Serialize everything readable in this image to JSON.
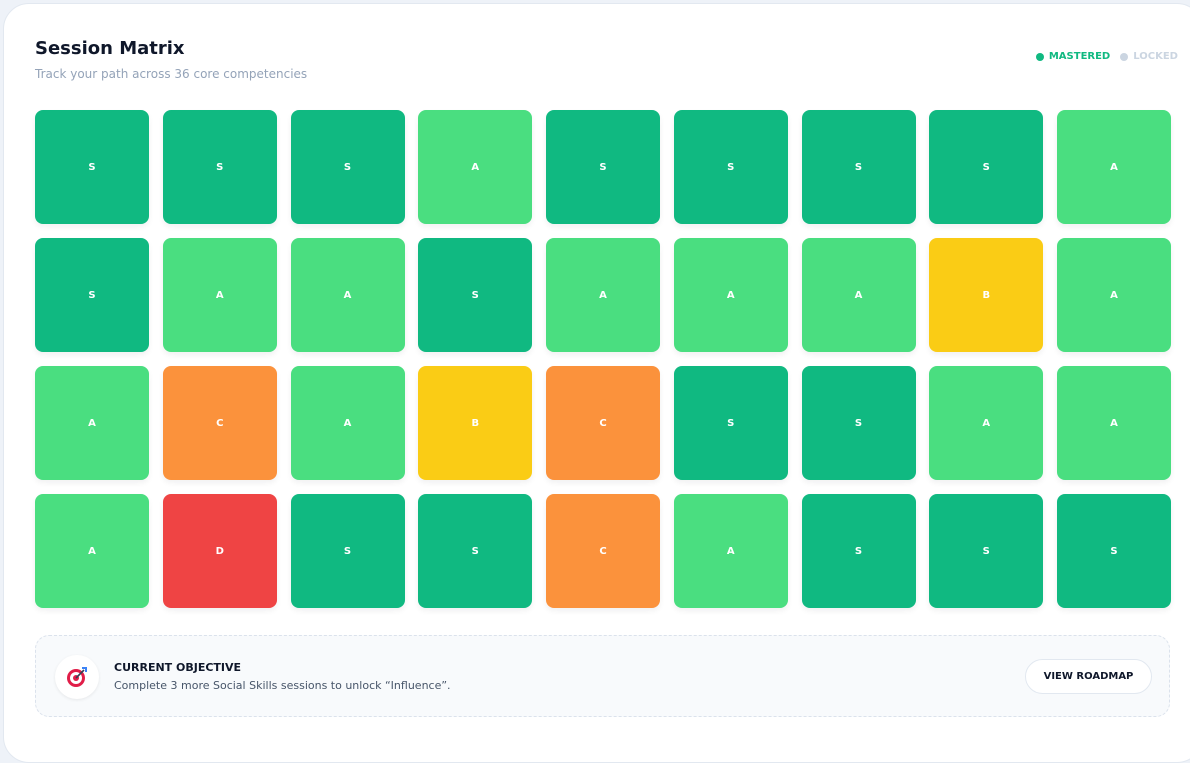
{
  "header": {
    "title": "Session Matrix",
    "subtitle": "Track your path across 36 core competencies"
  },
  "legend": [
    {
      "label": "MASTERED",
      "color": "#10b981"
    },
    {
      "label": "LOCKED",
      "color": "#cbd5e1"
    }
  ],
  "grade_colors": {
    "S": "#10b981",
    "A": "#4ade80",
    "B": "#facc15",
    "C": "#fb923c",
    "D": "#ef4444"
  },
  "tiles": [
    [
      "S",
      "S",
      "S",
      "A",
      "S",
      "S",
      "S",
      "S",
      "A"
    ],
    [
      "S",
      "A",
      "A",
      "S",
      "A",
      "A",
      "A",
      "B",
      "A"
    ],
    [
      "A",
      "C",
      "A",
      "B",
      "C",
      "S",
      "S",
      "A",
      "A"
    ],
    [
      "A",
      "D",
      "S",
      "S",
      "C",
      "A",
      "S",
      "S",
      "S"
    ]
  ],
  "objective": {
    "title": "CURRENT OBJECTIVE",
    "text": "Complete 3 more Social Skills sessions to unlock “Influence”.",
    "button": "VIEW ROADMAP"
  }
}
